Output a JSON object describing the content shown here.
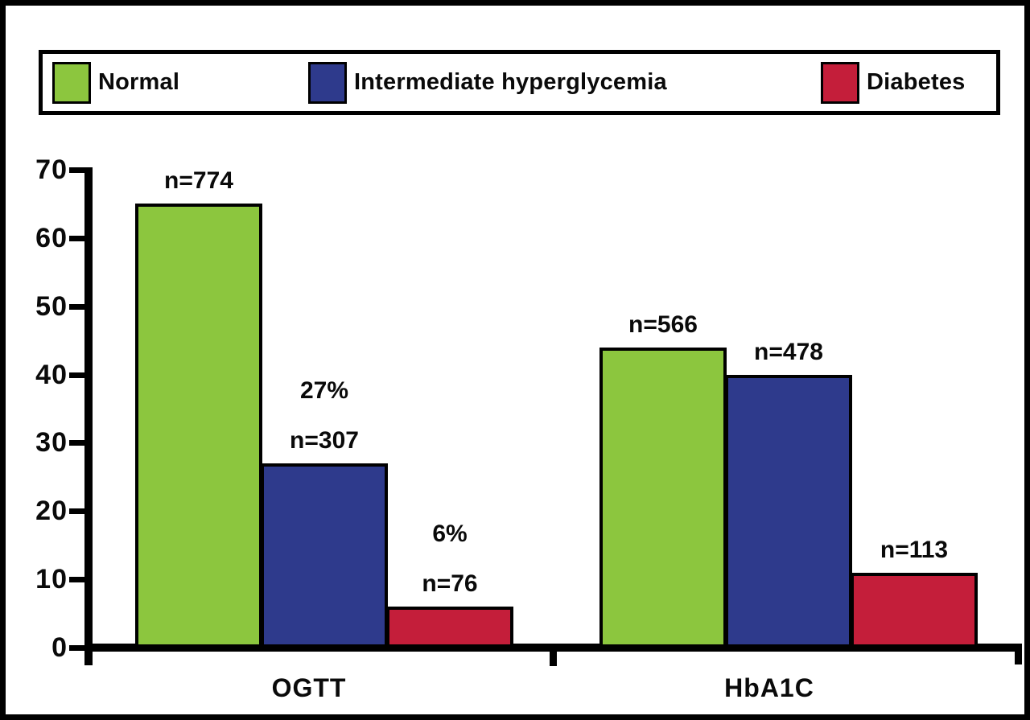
{
  "figure": {
    "background": "#ffffff",
    "border_color": "#000000"
  },
  "legend": {
    "items": [
      {
        "label": "Normal",
        "color": "#8CC63E"
      },
      {
        "label": "Intermediate hyperglycemia",
        "color": "#2E3A8C"
      },
      {
        "label": "Diabetes",
        "color": "#C41E3A"
      }
    ]
  },
  "chart_data": {
    "type": "bar",
    "title": "",
    "xlabel": "",
    "ylabel": "",
    "ylim": [
      0,
      70
    ],
    "yticks": [
      0,
      10,
      20,
      30,
      40,
      50,
      60,
      70
    ],
    "grid": false,
    "legend_position": "top",
    "categories": [
      "OGTT",
      "HbA1C"
    ],
    "series": [
      {
        "name": "Normal",
        "color": "#8CC63E",
        "values": [
          65,
          44
        ]
      },
      {
        "name": "Intermediate hyperglycemia",
        "color": "#2E3A8C",
        "values": [
          27,
          40
        ]
      },
      {
        "name": "Diabetes",
        "color": "#C41E3A",
        "values": [
          6,
          11
        ]
      }
    ],
    "bars": [
      {
        "category": "OGTT",
        "series": "Normal",
        "value": 65,
        "n_label": "n=774"
      },
      {
        "category": "OGTT",
        "series": "Intermediate hyperglycemia",
        "value": 27,
        "pct_label": "27%",
        "n_label": "n=307"
      },
      {
        "category": "OGTT",
        "series": "Diabetes",
        "value": 6,
        "pct_label": "6%",
        "n_label": "n=76"
      },
      {
        "category": "HbA1C",
        "series": "Normal",
        "value": 44,
        "n_label": "n=566"
      },
      {
        "category": "HbA1C",
        "series": "Intermediate hyperglycemia",
        "value": 40,
        "n_label": "n=478"
      },
      {
        "category": "HbA1C",
        "series": "Diabetes",
        "value": 11,
        "n_label": "n=113"
      }
    ]
  }
}
